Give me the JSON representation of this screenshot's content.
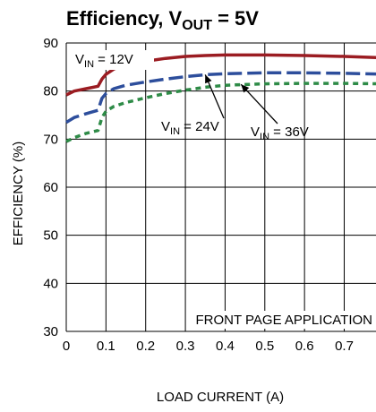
{
  "chart_data": {
    "type": "line",
    "title": {
      "prefix": "Efficiency, V",
      "sub": "OUT",
      "suffix": " = 5V"
    },
    "xlabel": "LOAD CURRENT (A)",
    "ylabel": "EFFICIENCY (%)",
    "xlim": [
      0,
      0.8
    ],
    "ylim": [
      30,
      90
    ],
    "xticks": [
      "0",
      "0.1",
      "0.2",
      "0.3",
      "0.4",
      "0.5",
      "0.6",
      "0.7"
    ],
    "yticks": [
      "30",
      "40",
      "50",
      "60",
      "70",
      "80",
      "90"
    ],
    "grid": true,
    "annotation": "FRONT PAGE APPLICATION",
    "series": [
      {
        "label": {
          "prefix": "V",
          "sub": "IN",
          "suffix": " = 12V"
        },
        "color": "#9b1c22",
        "dash": "solid",
        "points": [
          [
            0,
            79.2
          ],
          [
            0.02,
            80
          ],
          [
            0.05,
            80.5
          ],
          [
            0.08,
            81
          ],
          [
            0.09,
            82.5
          ],
          [
            0.1,
            83.5
          ],
          [
            0.12,
            84.6
          ],
          [
            0.15,
            85.4
          ],
          [
            0.2,
            86.2
          ],
          [
            0.25,
            86.8
          ],
          [
            0.3,
            87.2
          ],
          [
            0.35,
            87.4
          ],
          [
            0.4,
            87.5
          ],
          [
            0.5,
            87.5
          ],
          [
            0.6,
            87.4
          ],
          [
            0.7,
            87.2
          ],
          [
            0.8,
            86.9
          ]
        ]
      },
      {
        "label": {
          "prefix": "V",
          "sub": "IN",
          "suffix": " = 24V"
        },
        "color": "#2d4e9c",
        "dash": "long-dash",
        "points": [
          [
            0,
            73.5
          ],
          [
            0.02,
            74.5
          ],
          [
            0.05,
            75.3
          ],
          [
            0.08,
            76
          ],
          [
            0.09,
            78.5
          ],
          [
            0.1,
            79.5
          ],
          [
            0.12,
            80.5
          ],
          [
            0.15,
            81.2
          ],
          [
            0.2,
            81.9
          ],
          [
            0.25,
            82.5
          ],
          [
            0.3,
            83
          ],
          [
            0.35,
            83.4
          ],
          [
            0.4,
            83.6
          ],
          [
            0.5,
            83.8
          ],
          [
            0.6,
            83.8
          ],
          [
            0.7,
            83.7
          ],
          [
            0.8,
            83.5
          ]
        ]
      },
      {
        "label": {
          "prefix": "V",
          "sub": "IN",
          "suffix": " = 36V"
        },
        "color": "#2e8b47",
        "dash": "short-dash",
        "points": [
          [
            0,
            69.5
          ],
          [
            0.02,
            70.3
          ],
          [
            0.05,
            71.2
          ],
          [
            0.08,
            71.8
          ],
          [
            0.09,
            74.5
          ],
          [
            0.1,
            75.8
          ],
          [
            0.12,
            76.8
          ],
          [
            0.15,
            77.6
          ],
          [
            0.2,
            78.6
          ],
          [
            0.25,
            79.5
          ],
          [
            0.3,
            80.2
          ],
          [
            0.35,
            80.8
          ],
          [
            0.4,
            81.2
          ],
          [
            0.5,
            81.5
          ],
          [
            0.6,
            81.6
          ],
          [
            0.7,
            81.6
          ],
          [
            0.8,
            81.5
          ]
        ]
      }
    ]
  }
}
